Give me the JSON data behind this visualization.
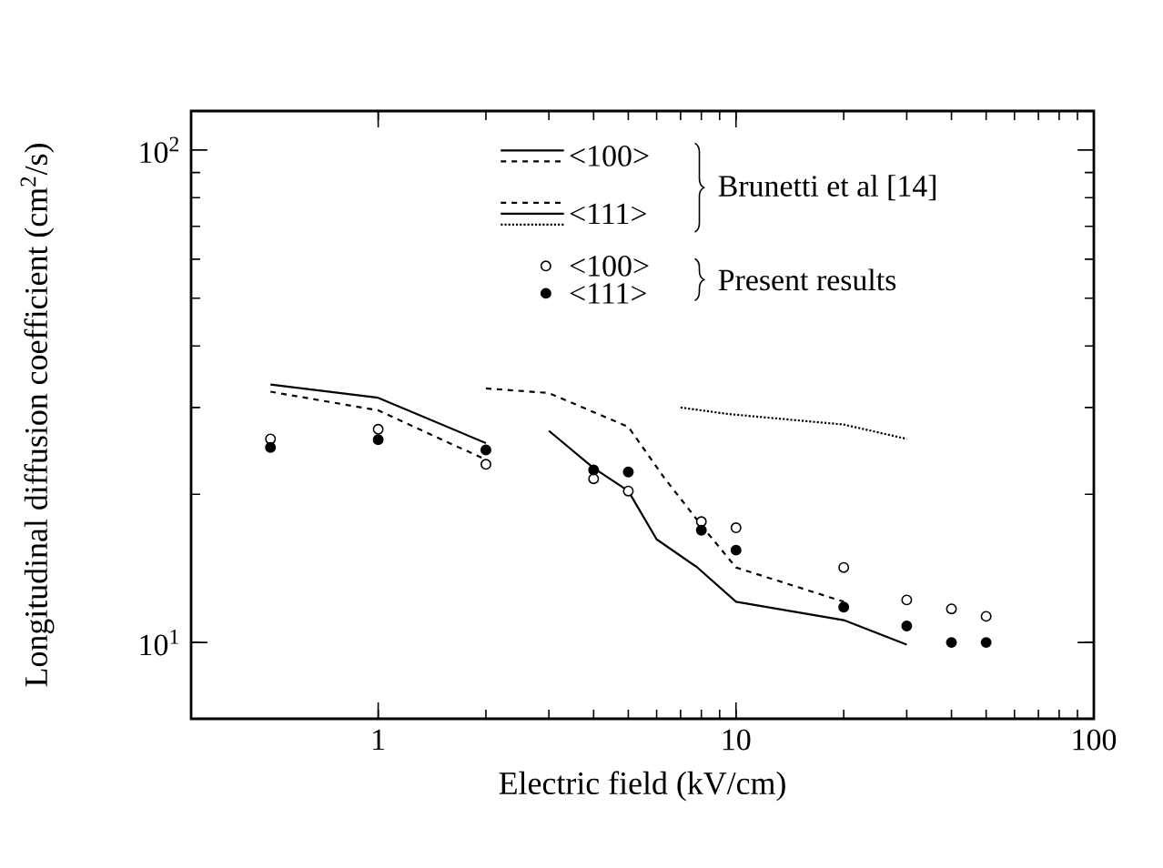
{
  "chart_data": {
    "type": "line",
    "xlabel": "Electric field  (kV/cm)",
    "ylabel": "Longitudinal diffusion coefficient (cm$^{2}$/s)",
    "log": "xy",
    "xlim": [
      0.3,
      100
    ],
    "ylim": [
      7,
      120
    ],
    "xticks": [
      1,
      10,
      100
    ],
    "yticks": [
      {
        "value": 10,
        "label": "10$^{1}$"
      },
      {
        "value": 100,
        "label": "10$^{2}$"
      }
    ],
    "legend": "top",
    "annotations": [
      "Brunetti et al [14]",
      "Present results"
    ],
    "series": [
      {
        "name": "<100>",
        "line_style": "solid",
        "color": "#000000",
        "x": [
          0.5,
          1,
          2
        ],
        "values": [
          33.4,
          31.4,
          25.4
        ]
      },
      {
        "line_style": "dashed",
        "color": "#000000",
        "x": [
          2,
          3,
          5,
          6.3,
          8.1,
          10,
          20
        ],
        "values": [
          32.8,
          32.1,
          27.4,
          21.6,
          17.1,
          14.2,
          12.1
        ]
      },
      {
        "name": "<111>",
        "line_style": "dashed",
        "color": "#000000",
        "x": [
          0.5,
          1,
          2
        ],
        "values": [
          32.3,
          29.6,
          23.5
        ]
      },
      {
        "line_style": "solid",
        "color": "#000000",
        "x": [
          3,
          4,
          5,
          6,
          7.8,
          10,
          20,
          30
        ],
        "values": [
          26.9,
          22.6,
          20.3,
          16.2,
          14.2,
          12.1,
          11.1,
          9.9
        ]
      },
      {
        "line_style": "dotted",
        "color": "#000000",
        "x": [
          7,
          9.5,
          20,
          30
        ],
        "values": [
          30.0,
          29.1,
          27.7,
          25.9
        ]
      },
      {
        "name": "<100>",
        "type": "scatter",
        "marker": "circle",
        "color": "#ffffff",
        "x": [
          0.5,
          1,
          2,
          4,
          5,
          8,
          10,
          20,
          30,
          40,
          50
        ],
        "values": [
          25.9,
          27.1,
          23.0,
          21.5,
          20.3,
          17.6,
          17.1,
          14.2,
          12.2,
          11.7,
          11.3
        ]
      },
      {
        "name": "<111>",
        "type": "scatter",
        "marker": "circle",
        "color": "#000000",
        "x": [
          0.5,
          1,
          2,
          4,
          5,
          8,
          10,
          20,
          30,
          40,
          50
        ],
        "values": [
          24.9,
          25.8,
          24.6,
          22.4,
          22.2,
          16.9,
          15.4,
          11.8,
          10.8,
          10.0,
          10.0
        ]
      }
    ]
  }
}
